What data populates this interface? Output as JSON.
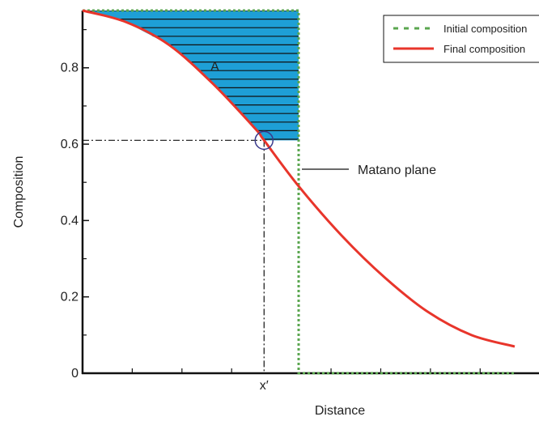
{
  "chart_data": {
    "type": "line",
    "title": "",
    "xlabel": "Distance",
    "ylabel": "Composition",
    "ylim": [
      0,
      0.95
    ],
    "yticks": [
      0,
      0.2,
      0.4,
      0.6,
      0.8
    ],
    "ytick_labels": [
      "0",
      "0.2",
      "0.4",
      "0.6",
      "0.8"
    ],
    "x_tick_label": "x′",
    "grid": false,
    "legend": "top-right",
    "series": [
      {
        "name": "Initial composition",
        "style": "dashed",
        "color": "#5aa64f",
        "x": [
          0,
          0.5,
          0.5,
          1
        ],
        "y": [
          0.95,
          0.95,
          0,
          0
        ]
      },
      {
        "name": "Final composition",
        "style": "solid",
        "color": "#e8352b",
        "x": [
          0,
          0.1,
          0.2,
          0.3,
          0.4,
          0.42,
          0.5,
          0.6,
          0.7,
          0.8,
          0.9,
          1.0
        ],
        "y": [
          0.95,
          0.92,
          0.86,
          0.76,
          0.64,
          0.61,
          0.49,
          0.36,
          0.25,
          0.16,
          0.1,
          0.07
        ]
      }
    ],
    "annotations": {
      "area_label": "A",
      "matano_label": "Matano plane",
      "point_x": 0.42,
      "point_y": 0.61,
      "matano_x": 0.5,
      "area_color": "#1e9fd6"
    }
  }
}
